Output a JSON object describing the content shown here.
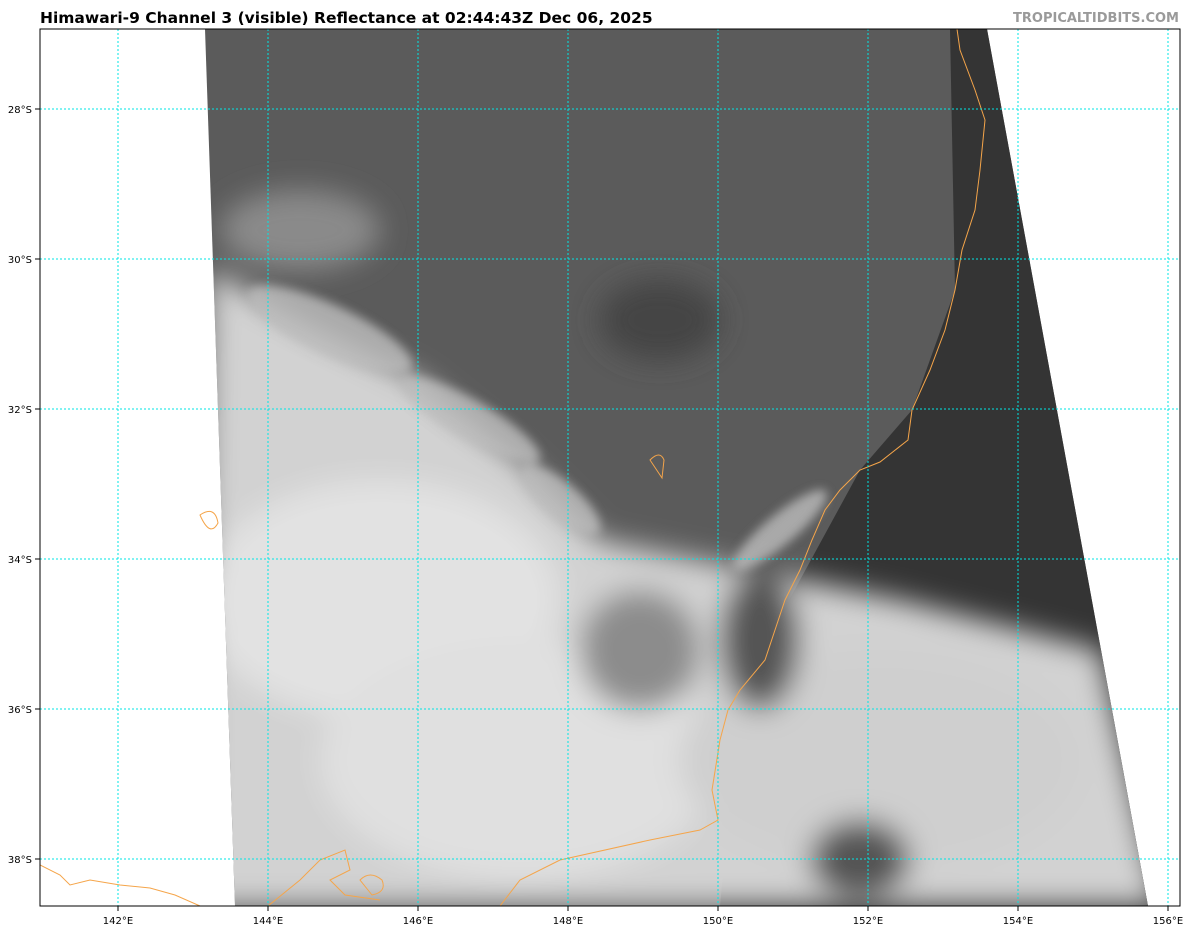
{
  "title": "Himawari-9 Channel 3 (visible) Reflectance at 02:44:43Z Dec 06, 2025",
  "watermark": "TROPICALTIDBITS.COM",
  "map": {
    "extent": {
      "lon": [
        140.97,
        156.17
      ],
      "lat": [
        -26.93,
        -38.62
      ]
    },
    "longitudes": [
      {
        "value": 142,
        "label": "142°E"
      },
      {
        "value": 144,
        "label": "144°E"
      },
      {
        "value": 146,
        "label": "146°E"
      },
      {
        "value": 148,
        "label": "148°E"
      },
      {
        "value": 150,
        "label": "150°E"
      },
      {
        "value": 152,
        "label": "152°E"
      },
      {
        "value": 154,
        "label": "154°E"
      },
      {
        "value": 156,
        "label": "156°E"
      }
    ],
    "latitudes": [
      {
        "value": 28,
        "label": "28°S"
      },
      {
        "value": 30,
        "label": "30°S"
      },
      {
        "value": 32,
        "label": "32°S"
      },
      {
        "value": 34,
        "label": "34°S"
      },
      {
        "value": 36,
        "label": "36°S"
      },
      {
        "value": 38,
        "label": "38°S"
      }
    ],
    "colors": {
      "grid": "#00e5e5",
      "coastline": "#f5a54a",
      "land": "#5a5a5a",
      "ocean": "#333333",
      "cloud": "#d8d8d8"
    }
  }
}
